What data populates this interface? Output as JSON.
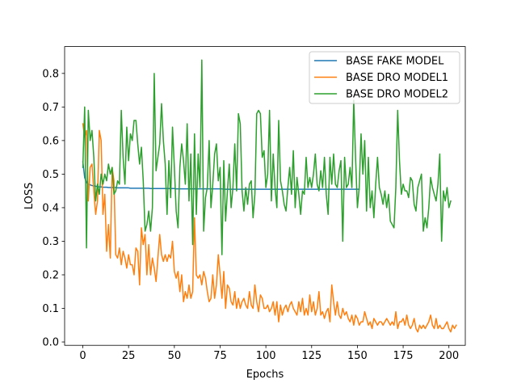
{
  "chart_data": {
    "type": "line",
    "title": "",
    "xlabel": "Epochs",
    "ylabel": "LOSS",
    "xlim": [
      -9.95,
      208.95
    ],
    "ylim": [
      -0.01,
      0.88
    ],
    "x_ticks": [
      0,
      25,
      50,
      75,
      100,
      125,
      150,
      175,
      200
    ],
    "y_ticks": [
      0.0,
      0.1,
      0.2,
      0.3,
      0.4,
      0.5,
      0.6,
      0.7,
      0.8
    ],
    "grid": false,
    "legend_position": "top-right",
    "colors": {
      "BASE FAKE MODEL": "#1f77b4",
      "BASE DRO MODEL1": "#ff7f0e",
      "BASE DRO MODEL2": "#2ca02c"
    },
    "series": [
      {
        "name": "BASE FAKE MODEL",
        "x_start": 0,
        "values": [
          0.537,
          0.49,
          0.475,
          0.47,
          0.468,
          0.466,
          0.465,
          0.464,
          0.463,
          0.462,
          0.462,
          0.461,
          0.461,
          0.461,
          0.46,
          0.46,
          0.46,
          0.46,
          0.46,
          0.459,
          0.459,
          0.459,
          0.459,
          0.459,
          0.459,
          0.459,
          0.458,
          0.458,
          0.458,
          0.458,
          0.458,
          0.458,
          0.458,
          0.458,
          0.458,
          0.458,
          0.458,
          0.457,
          0.457,
          0.457,
          0.457,
          0.457,
          0.457,
          0.457,
          0.457,
          0.457,
          0.457,
          0.457,
          0.457,
          0.457,
          0.457,
          0.456,
          0.456,
          0.456,
          0.456,
          0.456,
          0.456,
          0.456,
          0.456,
          0.456,
          0.456,
          0.456,
          0.456,
          0.456,
          0.456,
          0.456,
          0.456,
          0.456,
          0.456,
          0.456,
          0.456,
          0.456,
          0.456,
          0.456,
          0.456,
          0.456,
          0.456,
          0.455,
          0.455,
          0.455,
          0.455,
          0.455,
          0.455,
          0.455,
          0.455,
          0.455,
          0.455,
          0.455,
          0.455,
          0.455,
          0.455,
          0.455,
          0.455,
          0.455,
          0.455,
          0.455,
          0.455,
          0.455,
          0.455,
          0.455,
          0.455,
          0.455,
          0.455,
          0.455,
          0.455,
          0.455,
          0.455,
          0.455,
          0.455,
          0.455,
          0.455,
          0.455,
          0.455,
          0.455,
          0.455,
          0.455,
          0.455,
          0.455,
          0.455,
          0.455,
          0.455,
          0.455,
          0.455,
          0.455,
          0.455,
          0.455,
          0.455,
          0.455,
          0.455,
          0.455,
          0.455,
          0.455,
          0.455,
          0.455,
          0.455,
          0.455,
          0.455,
          0.455,
          0.455,
          0.455,
          0.455,
          0.455,
          0.455,
          0.455,
          0.455,
          0.455,
          0.455,
          0.455,
          0.455,
          0.455,
          0.455,
          0.455
        ]
      },
      {
        "name": "BASE DRO MODEL1",
        "x_start": 0,
        "values": [
          0.65,
          0.61,
          0.63,
          0.42,
          0.52,
          0.53,
          0.45,
          0.38,
          0.42,
          0.63,
          0.6,
          0.38,
          0.44,
          0.27,
          0.35,
          0.25,
          0.52,
          0.48,
          0.26,
          0.25,
          0.28,
          0.23,
          0.27,
          0.25,
          0.22,
          0.26,
          0.23,
          0.23,
          0.2,
          0.28,
          0.27,
          0.17,
          0.34,
          0.29,
          0.32,
          0.2,
          0.29,
          0.2,
          0.25,
          0.22,
          0.18,
          0.25,
          0.32,
          0.26,
          0.24,
          0.26,
          0.24,
          0.26,
          0.25,
          0.3,
          0.21,
          0.19,
          0.21,
          0.15,
          0.2,
          0.12,
          0.15,
          0.13,
          0.17,
          0.13,
          0.15,
          0.37,
          0.2,
          0.19,
          0.2,
          0.17,
          0.21,
          0.19,
          0.15,
          0.12,
          0.13,
          0.2,
          0.13,
          0.17,
          0.26,
          0.2,
          0.13,
          0.21,
          0.1,
          0.17,
          0.16,
          0.12,
          0.11,
          0.15,
          0.1,
          0.13,
          0.1,
          0.12,
          0.13,
          0.11,
          0.1,
          0.15,
          0.11,
          0.1,
          0.17,
          0.12,
          0.09,
          0.14,
          0.13,
          0.1,
          0.1,
          0.11,
          0.09,
          0.1,
          0.12,
          0.08,
          0.12,
          0.06,
          0.11,
          0.08,
          0.1,
          0.11,
          0.09,
          0.11,
          0.12,
          0.1,
          0.09,
          0.08,
          0.12,
          0.09,
          0.13,
          0.08,
          0.1,
          0.08,
          0.14,
          0.09,
          0.12,
          0.08,
          0.1,
          0.15,
          0.08,
          0.09,
          0.07,
          0.09,
          0.1,
          0.06,
          0.17,
          0.12,
          0.08,
          0.12,
          0.08,
          0.07,
          0.1,
          0.08,
          0.09,
          0.07,
          0.06,
          0.08,
          0.05,
          0.08,
          0.07,
          0.05,
          0.06,
          0.06,
          0.09,
          0.07,
          0.05,
          0.06,
          0.04,
          0.07,
          0.06,
          0.05,
          0.06,
          0.06,
          0.05,
          0.06,
          0.07,
          0.06,
          0.05,
          0.06,
          0.05,
          0.09,
          0.04,
          0.06,
          0.06,
          0.07,
          0.05,
          0.08,
          0.05,
          0.04,
          0.05,
          0.07,
          0.04,
          0.03,
          0.05,
          0.04,
          0.05,
          0.04,
          0.05,
          0.06,
          0.08,
          0.05,
          0.04,
          0.07,
          0.04,
          0.05,
          0.04,
          0.04,
          0.05,
          0.06,
          0.04,
          0.03,
          0.05,
          0.04,
          0.05
        ]
      },
      {
        "name": "BASE DRO MODEL2",
        "x_start": 0,
        "values": [
          0.52,
          0.7,
          0.28,
          0.69,
          0.6,
          0.63,
          0.55,
          0.42,
          0.47,
          0.44,
          0.5,
          0.47,
          0.5,
          0.48,
          0.53,
          0.5,
          0.52,
          0.44,
          0.45,
          0.48,
          0.47,
          0.69,
          0.55,
          0.47,
          0.64,
          0.54,
          0.62,
          0.6,
          0.66,
          0.66,
          0.59,
          0.53,
          0.58,
          0.48,
          0.33,
          0.35,
          0.39,
          0.33,
          0.4,
          0.8,
          0.51,
          0.55,
          0.59,
          0.71,
          0.6,
          0.53,
          0.38,
          0.54,
          0.43,
          0.64,
          0.52,
          0.39,
          0.34,
          0.52,
          0.59,
          0.54,
          0.47,
          0.65,
          0.42,
          0.56,
          0.29,
          0.62,
          0.38,
          0.56,
          0.46,
          0.84,
          0.33,
          0.43,
          0.46,
          0.6,
          0.4,
          0.47,
          0.56,
          0.59,
          0.48,
          0.52,
          0.26,
          0.54,
          0.36,
          0.45,
          0.53,
          0.4,
          0.46,
          0.59,
          0.45,
          0.68,
          0.65,
          0.45,
          0.39,
          0.46,
          0.41,
          0.47,
          0.48,
          0.37,
          0.44,
          0.68,
          0.69,
          0.68,
          0.55,
          0.57,
          0.46,
          0.5,
          0.69,
          0.42,
          0.56,
          0.46,
          0.4,
          0.66,
          0.48,
          0.45,
          0.41,
          0.39,
          0.46,
          0.52,
          0.44,
          0.57,
          0.4,
          0.49,
          0.44,
          0.38,
          0.45,
          0.44,
          0.55,
          0.46,
          0.49,
          0.46,
          0.5,
          0.56,
          0.47,
          0.45,
          0.51,
          0.46,
          0.55,
          0.44,
          0.38,
          0.55,
          0.47,
          0.56,
          0.47,
          0.46,
          0.51,
          0.54,
          0.3,
          0.55,
          0.46,
          0.47,
          0.52,
          0.46,
          0.72,
          0.55,
          0.4,
          0.46,
          0.62,
          0.5,
          0.6,
          0.39,
          0.55,
          0.4,
          0.45,
          0.37,
          0.47,
          0.55,
          0.46,
          0.44,
          0.41,
          0.45,
          0.4,
          0.44,
          0.36,
          0.35,
          0.34,
          0.46,
          0.69,
          0.54,
          0.44,
          0.47,
          0.45,
          0.45,
          0.43,
          0.49,
          0.48,
          0.41,
          0.39,
          0.46,
          0.48,
          0.5,
          0.33,
          0.37,
          0.34,
          0.4,
          0.49,
          0.46,
          0.44,
          0.42,
          0.47,
          0.56,
          0.3,
          0.45,
          0.42,
          0.46,
          0.4,
          0.42
        ]
      }
    ]
  }
}
